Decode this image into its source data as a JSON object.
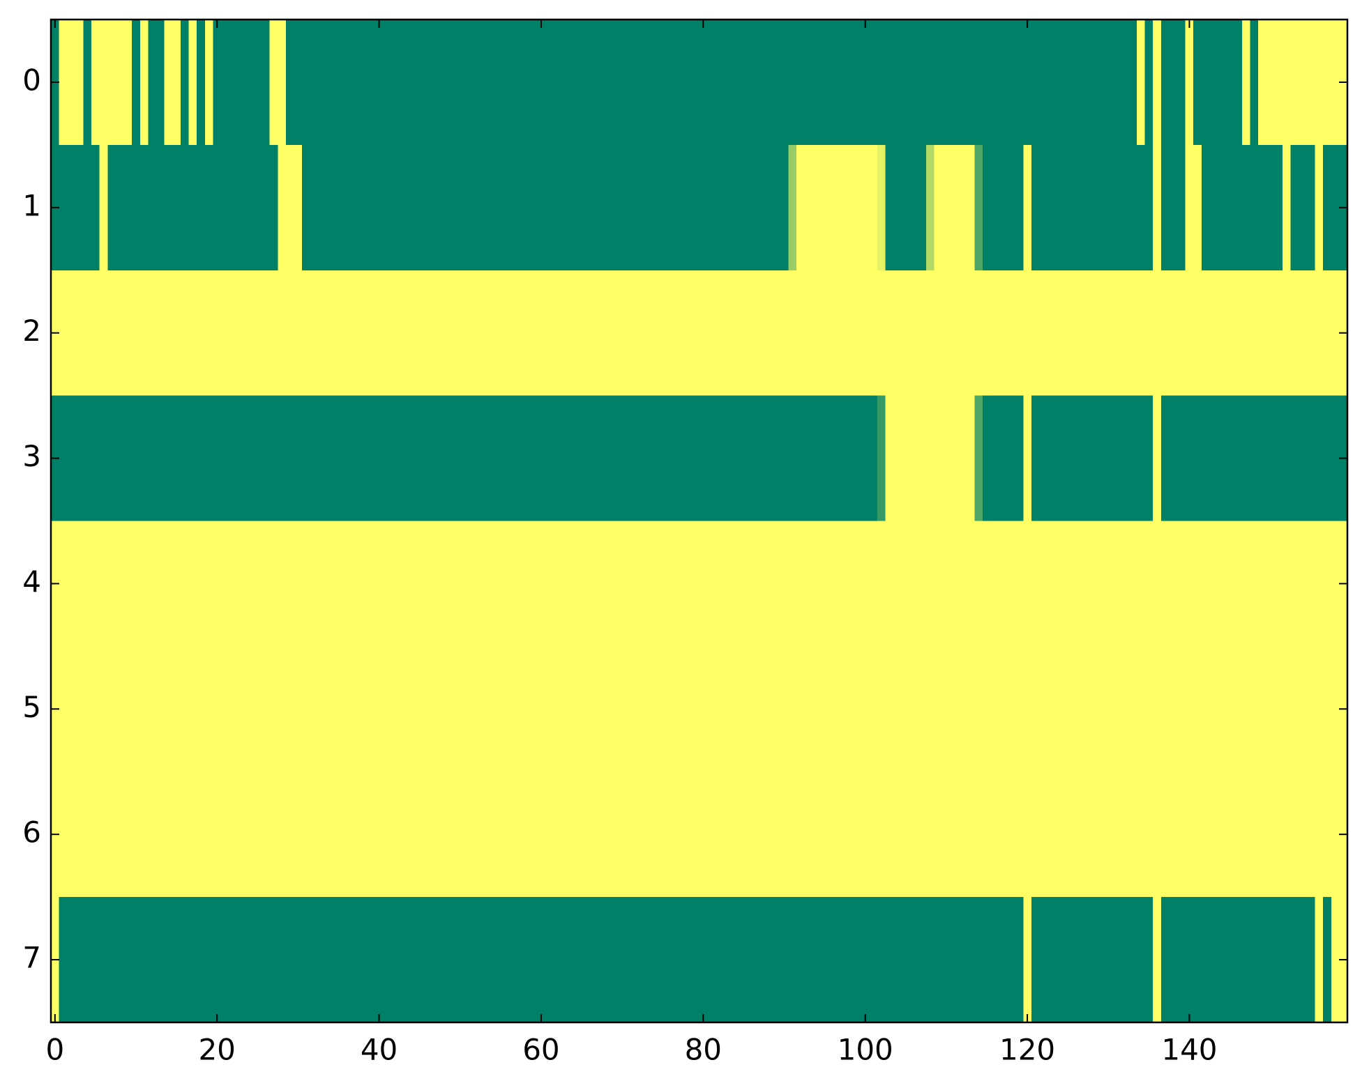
{
  "chart_data": {
    "type": "heatmap",
    "colors": [
      "#008066",
      "#ffff66"
    ],
    "xlim": [
      -0.5,
      159.5
    ],
    "ylim": [
      7.5,
      -0.5
    ],
    "xticks": [
      0,
      20,
      40,
      60,
      80,
      100,
      120,
      140
    ],
    "yticks": [
      0,
      1,
      2,
      3,
      4,
      5,
      6,
      7
    ],
    "z": [
      [
        0,
        1,
        1,
        1,
        0,
        1,
        1,
        1,
        1,
        1,
        0,
        1,
        0,
        0,
        1,
        1,
        0,
        1,
        0,
        1,
        0,
        0,
        0,
        0,
        0,
        0,
        0,
        1,
        1,
        0,
        0,
        0,
        0,
        0,
        0,
        0,
        0,
        0,
        0,
        0,
        0,
        0,
        0,
        0,
        0,
        0,
        0,
        0,
        0,
        0,
        0,
        0,
        0,
        0,
        0,
        0,
        0,
        0,
        0,
        0,
        0,
        0,
        0,
        0,
        0,
        0,
        0,
        0,
        0,
        0,
        0,
        0,
        0,
        0,
        0,
        0,
        0,
        0,
        0,
        0,
        0,
        0,
        0,
        0,
        0,
        0,
        0,
        0,
        0,
        0,
        0,
        0,
        0,
        0,
        0,
        0,
        0,
        0,
        0,
        0,
        0,
        0,
        0,
        0,
        0,
        0,
        0,
        0,
        0,
        0,
        0,
        0,
        0,
        0,
        0,
        0,
        0,
        0,
        0,
        0,
        0,
        0,
        0,
        0,
        0,
        0,
        0,
        0,
        0,
        0,
        0,
        0,
        0,
        0,
        1,
        0,
        1,
        0,
        0,
        0,
        1,
        0,
        0,
        0,
        0,
        0,
        0,
        1,
        0,
        1,
        1,
        1,
        1,
        1,
        1,
        1,
        1,
        1,
        1,
        1
      ],
      [
        0,
        0,
        0,
        0,
        0,
        0,
        1,
        0,
        0,
        0,
        0,
        0,
        0,
        0,
        0,
        0,
        0,
        0,
        0,
        0,
        0,
        0,
        0,
        0,
        0,
        0,
        0,
        0,
        1,
        1,
        1,
        0,
        0,
        0,
        0,
        0,
        0,
        0,
        0,
        0,
        0,
        0,
        0,
        0,
        0,
        0,
        0,
        0,
        0,
        0,
        0,
        0,
        0,
        0,
        0,
        0,
        0,
        0,
        0,
        0,
        0,
        0,
        0,
        0,
        0,
        0,
        0,
        0,
        0,
        0,
        0,
        0,
        0,
        0,
        0,
        0,
        0,
        0,
        0,
        0,
        0,
        0,
        0,
        0,
        0,
        0,
        0,
        0,
        0,
        0,
        0,
        0.6,
        1,
        1,
        1,
        1,
        1,
        1,
        1,
        1,
        1,
        1,
        0.9,
        0,
        0,
        0,
        0,
        0,
        0.7,
        1,
        1,
        1,
        1,
        1,
        0.3,
        0,
        0,
        0,
        0,
        0,
        1,
        0,
        0,
        0,
        0,
        0,
        0,
        0,
        0,
        0,
        0,
        0,
        0,
        0,
        0,
        0,
        1,
        0,
        0,
        0,
        1,
        1,
        0,
        0,
        0,
        0,
        0,
        0,
        0,
        0,
        0,
        0,
        1,
        0,
        0,
        0,
        1,
        0,
        0,
        0
      ],
      [
        1,
        1,
        1,
        1,
        1,
        1,
        1,
        1,
        1,
        1,
        1,
        1,
        1,
        1,
        1,
        1,
        1,
        1,
        1,
        1,
        1,
        1,
        1,
        1,
        1,
        1,
        1,
        1,
        1,
        1,
        1,
        1,
        1,
        1,
        1,
        1,
        1,
        1,
        1,
        1,
        1,
        1,
        1,
        1,
        1,
        1,
        1,
        1,
        1,
        1,
        1,
        1,
        1,
        1,
        1,
        1,
        1,
        1,
        1,
        1,
        1,
        1,
        1,
        1,
        1,
        1,
        1,
        1,
        1,
        1,
        1,
        1,
        1,
        1,
        1,
        1,
        1,
        1,
        1,
        1,
        1,
        1,
        1,
        1,
        1,
        1,
        1,
        1,
        1,
        1,
        1,
        1,
        1,
        1,
        1,
        1,
        1,
        1,
        1,
        1,
        1,
        1,
        1,
        1,
        1,
        1,
        1,
        1,
        1,
        1,
        1,
        1,
        1,
        1,
        1,
        1,
        1,
        1,
        1,
        1,
        1,
        1,
        1,
        1,
        1,
        1,
        1,
        1,
        1,
        1,
        1,
        1,
        1,
        1,
        1,
        1,
        1,
        1,
        1,
        1,
        1,
        1,
        1,
        1,
        1,
        1,
        1,
        1,
        1,
        1,
        1,
        1,
        1,
        1,
        1,
        1,
        1,
        1,
        1,
        1
      ],
      [
        0,
        0,
        0,
        0,
        0,
        0,
        0,
        0,
        0,
        0,
        0,
        0,
        0,
        0,
        0,
        0,
        0,
        0,
        0,
        0,
        0,
        0,
        0,
        0,
        0,
        0,
        0,
        0,
        0,
        0,
        0,
        0,
        0,
        0,
        0,
        0,
        0,
        0,
        0,
        0,
        0,
        0,
        0,
        0,
        0,
        0,
        0,
        0,
        0,
        0,
        0,
        0,
        0,
        0,
        0,
        0,
        0,
        0,
        0,
        0,
        0,
        0,
        0,
        0,
        0,
        0,
        0,
        0,
        0,
        0,
        0,
        0,
        0,
        0,
        0,
        0,
        0,
        0,
        0,
        0,
        0,
        0,
        0,
        0,
        0,
        0,
        0,
        0,
        0,
        0,
        0,
        0,
        0,
        0,
        0,
        0,
        0,
        0,
        0,
        0,
        0,
        0,
        0.2,
        1,
        1,
        1,
        1,
        1,
        1,
        1,
        1,
        1,
        1,
        1,
        0.3,
        0,
        0,
        0,
        0,
        0,
        1,
        0,
        0,
        0,
        0,
        0,
        0,
        0,
        0,
        0,
        0,
        0,
        0,
        0,
        0,
        0,
        1,
        0,
        0,
        0,
        0,
        0,
        0,
        0,
        0,
        0,
        0,
        0,
        0,
        0,
        0,
        0,
        0,
        0,
        0,
        0,
        0,
        0,
        0,
        0
      ],
      [
        1,
        1,
        1,
        1,
        1,
        1,
        1,
        1,
        1,
        1,
        1,
        1,
        1,
        1,
        1,
        1,
        1,
        1,
        1,
        1,
        1,
        1,
        1,
        1,
        1,
        1,
        1,
        1,
        1,
        1,
        1,
        1,
        1,
        1,
        1,
        1,
        1,
        1,
        1,
        1,
        1,
        1,
        1,
        1,
        1,
        1,
        1,
        1,
        1,
        1,
        1,
        1,
        1,
        1,
        1,
        1,
        1,
        1,
        1,
        1,
        1,
        1,
        1,
        1,
        1,
        1,
        1,
        1,
        1,
        1,
        1,
        1,
        1,
        1,
        1,
        1,
        1,
        1,
        1,
        1,
        1,
        1,
        1,
        1,
        1,
        1,
        1,
        1,
        1,
        1,
        1,
        1,
        1,
        1,
        1,
        1,
        1,
        1,
        1,
        1,
        1,
        1,
        1,
        1,
        1,
        1,
        1,
        1,
        1,
        1,
        1,
        1,
        1,
        1,
        1,
        1,
        1,
        1,
        1,
        1,
        1,
        1,
        1,
        1,
        1,
        1,
        1,
        1,
        1,
        1,
        1,
        1,
        1,
        1,
        1,
        1,
        1,
        1,
        1,
        1,
        1,
        1,
        1,
        1,
        1,
        1,
        1,
        1,
        1,
        1,
        1,
        1,
        1,
        1,
        1,
        1,
        1,
        1,
        1,
        1
      ],
      [
        1,
        1,
        1,
        1,
        1,
        1,
        1,
        1,
        1,
        1,
        1,
        1,
        1,
        1,
        1,
        1,
        1,
        1,
        1,
        1,
        1,
        1,
        1,
        1,
        1,
        1,
        1,
        1,
        1,
        1,
        1,
        1,
        1,
        1,
        1,
        1,
        1,
        1,
        1,
        1,
        1,
        1,
        1,
        1,
        1,
        1,
        1,
        1,
        1,
        1,
        1,
        1,
        1,
        1,
        1,
        1,
        1,
        1,
        1,
        1,
        1,
        1,
        1,
        1,
        1,
        1,
        1,
        1,
        1,
        1,
        1,
        1,
        1,
        1,
        1,
        1,
        1,
        1,
        1,
        1,
        1,
        1,
        1,
        1,
        1,
        1,
        1,
        1,
        1,
        1,
        1,
        1,
        1,
        1,
        1,
        1,
        1,
        1,
        1,
        1,
        1,
        1,
        1,
        1,
        1,
        1,
        1,
        1,
        1,
        1,
        1,
        1,
        1,
        1,
        1,
        1,
        1,
        1,
        1,
        1,
        1,
        1,
        1,
        1,
        1,
        1,
        1,
        1,
        1,
        1,
        1,
        1,
        1,
        1,
        1,
        1,
        1,
        1,
        1,
        1,
        1,
        1,
        1,
        1,
        1,
        1,
        1,
        1,
        1,
        1,
        1,
        1,
        1,
        1,
        1,
        1,
        1,
        1,
        1,
        1
      ],
      [
        1,
        1,
        1,
        1,
        1,
        1,
        1,
        1,
        1,
        1,
        1,
        1,
        1,
        1,
        1,
        1,
        1,
        1,
        1,
        1,
        1,
        1,
        1,
        1,
        1,
        1,
        1,
        1,
        1,
        1,
        1,
        1,
        1,
        1,
        1,
        1,
        1,
        1,
        1,
        1,
        1,
        1,
        1,
        1,
        1,
        1,
        1,
        1,
        1,
        1,
        1,
        1,
        1,
        1,
        1,
        1,
        1,
        1,
        1,
        1,
        1,
        1,
        1,
        1,
        1,
        1,
        1,
        1,
        1,
        1,
        1,
        1,
        1,
        1,
        1,
        1,
        1,
        1,
        1,
        1,
        1,
        1,
        1,
        1,
        1,
        1,
        1,
        1,
        1,
        1,
        1,
        1,
        1,
        1,
        1,
        1,
        1,
        1,
        1,
        1,
        1,
        1,
        1,
        1,
        1,
        1,
        1,
        1,
        1,
        1,
        1,
        1,
        1,
        1,
        1,
        1,
        1,
        1,
        1,
        1,
        1,
        1,
        1,
        1,
        1,
        1,
        1,
        1,
        1,
        1,
        1,
        1,
        1,
        1,
        1,
        1,
        1,
        1,
        1,
        1,
        1,
        1,
        1,
        1,
        1,
        1,
        1,
        1,
        1,
        1,
        1,
        1,
        1,
        1,
        1,
        1,
        1,
        1,
        1,
        1
      ],
      [
        1,
        0,
        0,
        0,
        0,
        0,
        0,
        0,
        0,
        0,
        0,
        0,
        0,
        0,
        0,
        0,
        0,
        0,
        0,
        0,
        0,
        0,
        0,
        0,
        0,
        0,
        0,
        0,
        0,
        0,
        0,
        0,
        0,
        0,
        0,
        0,
        0,
        0,
        0,
        0,
        0,
        0,
        0,
        0,
        0,
        0,
        0,
        0,
        0,
        0,
        0,
        0,
        0,
        0,
        0,
        0,
        0,
        0,
        0,
        0,
        0,
        0,
        0,
        0,
        0,
        0,
        0,
        0,
        0,
        0,
        0,
        0,
        0,
        0,
        0,
        0,
        0,
        0,
        0,
        0,
        0,
        0,
        0,
        0,
        0,
        0,
        0,
        0,
        0,
        0,
        0,
        0,
        0,
        0,
        0,
        0,
        0,
        0,
        0,
        0,
        0,
        0,
        0,
        0,
        0,
        0,
        0,
        0,
        0,
        0,
        0,
        0,
        0,
        0,
        0,
        0,
        0,
        0,
        0,
        0,
        1,
        0,
        0,
        0,
        0,
        0,
        0,
        0,
        0,
        0,
        0,
        0,
        0,
        0,
        0,
        0,
        1,
        0,
        0,
        0,
        0,
        0,
        0,
        0,
        0,
        0,
        0,
        0,
        0,
        0,
        0,
        0,
        0,
        0,
        0,
        0,
        1,
        0,
        1,
        1
      ]
    ]
  }
}
